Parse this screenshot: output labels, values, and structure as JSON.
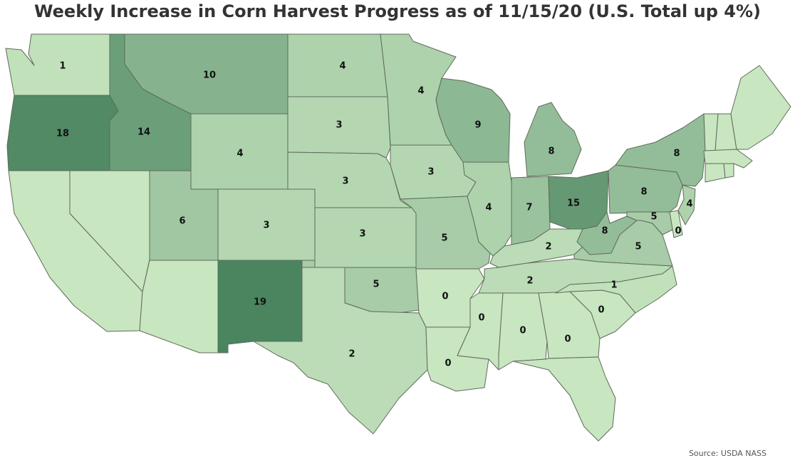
{
  "title": "Weekly Increase in Corn Harvest Progress as of 11/15/20 (U.S. Total up 4%)",
  "source": "Source: USDA NASS",
  "color_scale": {
    "min_value": 0,
    "max_value": 19,
    "low_color": "#c8e6c0",
    "high_color": "#4a8560"
  },
  "states": [
    {
      "name": "WA",
      "value": 1
    },
    {
      "name": "OR",
      "value": 18
    },
    {
      "name": "CA",
      "value": null
    },
    {
      "name": "NV",
      "value": null
    },
    {
      "name": "ID",
      "value": 14
    },
    {
      "name": "MT",
      "value": 10
    },
    {
      "name": "WY",
      "value": 4
    },
    {
      "name": "UT",
      "value": 6
    },
    {
      "name": "AZ",
      "value": null
    },
    {
      "name": "CO",
      "value": 3
    },
    {
      "name": "NM",
      "value": 19
    },
    {
      "name": "ND",
      "value": 4
    },
    {
      "name": "SD",
      "value": 3
    },
    {
      "name": "NE",
      "value": 3
    },
    {
      "name": "KS",
      "value": 3
    },
    {
      "name": "OK",
      "value": 5
    },
    {
      "name": "TX",
      "value": 2
    },
    {
      "name": "MN",
      "value": 4
    },
    {
      "name": "IA",
      "value": 3
    },
    {
      "name": "MO",
      "value": 5
    },
    {
      "name": "AR",
      "value": 0
    },
    {
      "name": "LA",
      "value": 0
    },
    {
      "name": "WI",
      "value": 9
    },
    {
      "name": "IL",
      "value": 4
    },
    {
      "name": "MI",
      "value": 8
    },
    {
      "name": "IN",
      "value": 7
    },
    {
      "name": "OH",
      "value": 15
    },
    {
      "name": "KY",
      "value": 2
    },
    {
      "name": "TN",
      "value": 2
    },
    {
      "name": "MS",
      "value": 0
    },
    {
      "name": "AL",
      "value": 0
    },
    {
      "name": "GA",
      "value": 0
    },
    {
      "name": "FL",
      "value": null
    },
    {
      "name": "SC",
      "value": 0
    },
    {
      "name": "NC",
      "value": 1
    },
    {
      "name": "VA",
      "value": 5
    },
    {
      "name": "WV",
      "value": 8
    },
    {
      "name": "PA",
      "value": 8
    },
    {
      "name": "NY",
      "value": 8
    },
    {
      "name": "MD",
      "value": 5
    },
    {
      "name": "DE",
      "value": 0
    },
    {
      "name": "NJ",
      "value": 4
    },
    {
      "name": "VT",
      "value": null
    },
    {
      "name": "NH",
      "value": null
    },
    {
      "name": "ME",
      "value": null
    },
    {
      "name": "MA",
      "value": null
    },
    {
      "name": "CT",
      "value": null
    },
    {
      "name": "RI",
      "value": null
    }
  ]
}
